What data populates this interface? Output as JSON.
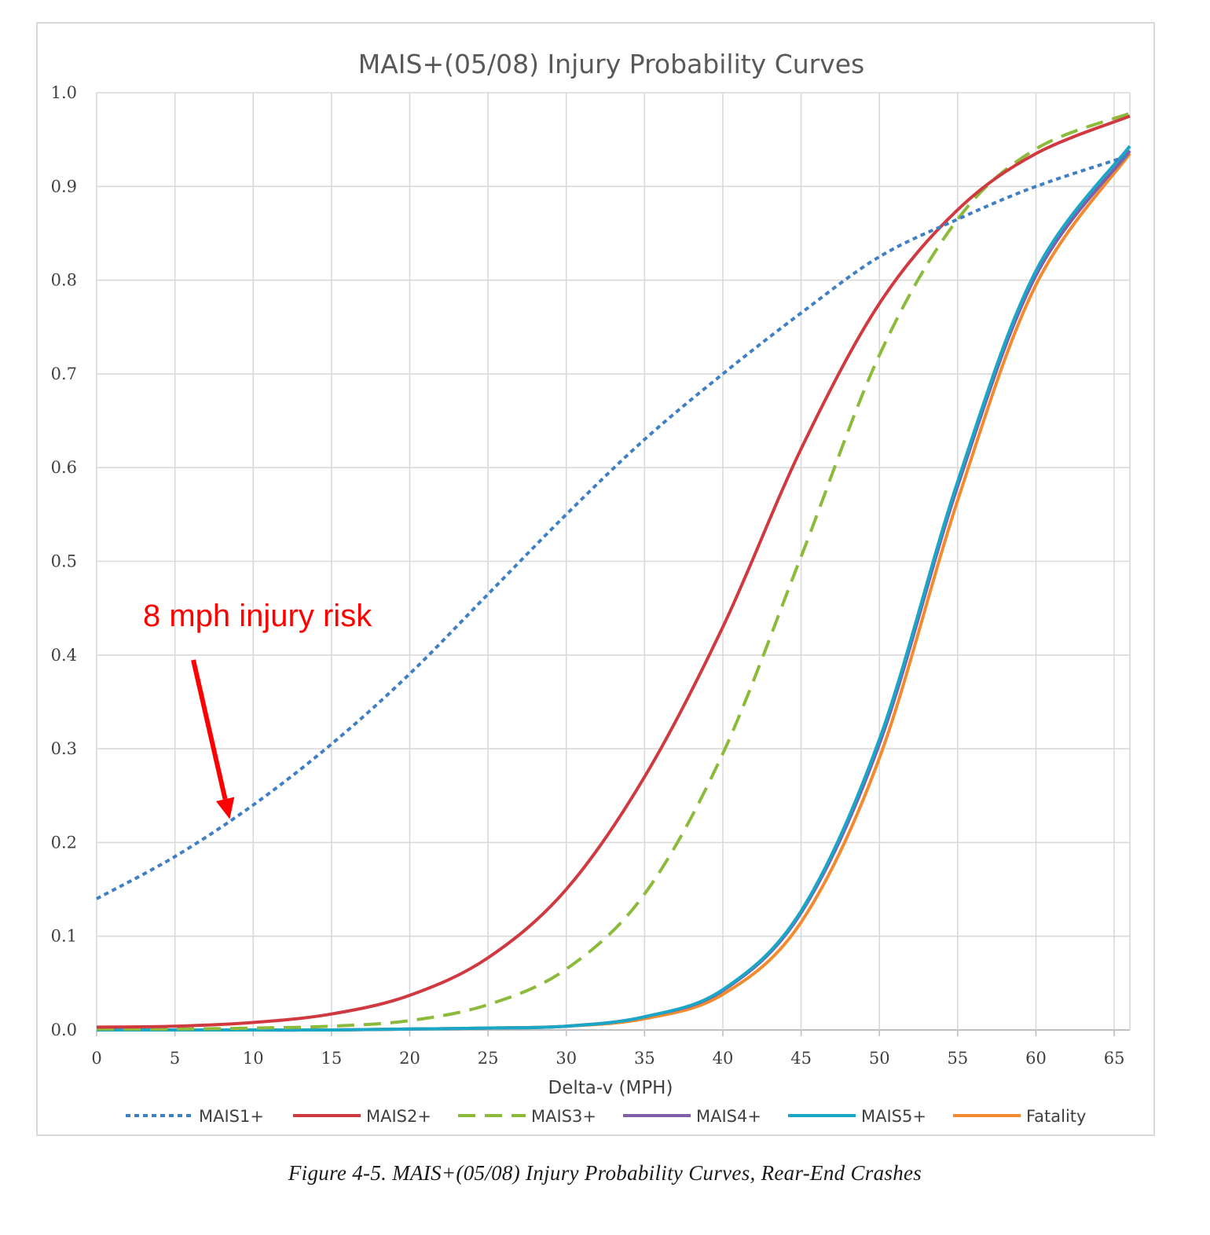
{
  "chart_data": {
    "type": "line",
    "title": "MAIS+(05/08) Injury Probability Curves",
    "xlabel": "Delta-v (MPH)",
    "ylabel": "",
    "xlim": [
      0,
      66
    ],
    "ylim": [
      0,
      1.0
    ],
    "xticks": [
      "0",
      "5",
      "10",
      "15",
      "20",
      "25",
      "30",
      "35",
      "40",
      "45",
      "50",
      "55",
      "60",
      "65"
    ],
    "yticks": [
      "0.0",
      "0.1",
      "0.2",
      "0.3",
      "0.4",
      "0.5",
      "0.6",
      "0.7",
      "0.8",
      "0.9",
      "1.0"
    ],
    "grid": true,
    "legend_position": "bottom",
    "x": [
      0,
      5,
      10,
      15,
      20,
      25,
      30,
      35,
      40,
      45,
      50,
      55,
      60,
      66
    ],
    "series": [
      {
        "name": "MAIS1+",
        "color": "#3f7fc4",
        "dash": "dotted",
        "values": [
          0.14,
          0.185,
          0.24,
          0.305,
          0.38,
          0.465,
          0.55,
          0.63,
          0.7,
          0.765,
          0.825,
          0.865,
          0.9,
          0.933
        ]
      },
      {
        "name": "MAIS2+",
        "color": "#d0393f",
        "dash": "solid",
        "values": [
          0.003,
          0.004,
          0.008,
          0.017,
          0.037,
          0.077,
          0.15,
          0.27,
          0.43,
          0.62,
          0.775,
          0.875,
          0.935,
          0.975
        ]
      },
      {
        "name": "MAIS3+",
        "color": "#8cbb3c",
        "dash": "dashed",
        "values": [
          0.001,
          0.001,
          0.002,
          0.004,
          0.01,
          0.027,
          0.065,
          0.145,
          0.295,
          0.505,
          0.72,
          0.865,
          0.94,
          0.978
        ]
      },
      {
        "name": "MAIS4+",
        "color": "#7e5fa8",
        "dash": "solid",
        "values": [
          0.0,
          0.0,
          0.0,
          0.0,
          0.001,
          0.002,
          0.004,
          0.014,
          0.042,
          0.125,
          0.305,
          0.58,
          0.805,
          0.938
        ]
      },
      {
        "name": "MAIS5+",
        "color": "#1aa7c7",
        "dash": "solid",
        "values": [
          0.0,
          0.0,
          0.0,
          0.0,
          0.001,
          0.002,
          0.004,
          0.014,
          0.043,
          0.127,
          0.31,
          0.585,
          0.81,
          0.943
        ]
      },
      {
        "name": "Fatality",
        "color": "#f28a2e",
        "dash": "solid",
        "values": [
          0.0,
          0.0,
          0.0,
          0.0,
          0.001,
          0.002,
          0.004,
          0.012,
          0.038,
          0.115,
          0.29,
          0.565,
          0.795,
          0.935
        ]
      }
    ],
    "annotation": {
      "text": "8 mph injury risk",
      "color": "#ff0000",
      "points_to": {
        "x": 8.5,
        "y": 0.225
      }
    }
  },
  "caption": "Figure 4-5. MAIS+(05/08) Injury Probability Curves, Rear-End Crashes"
}
